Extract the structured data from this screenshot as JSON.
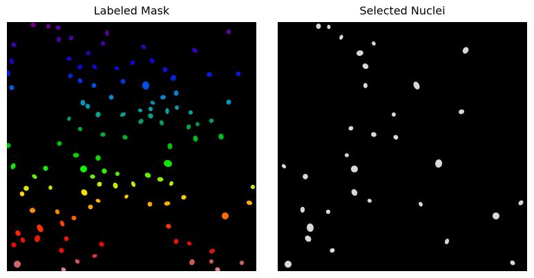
{
  "figure": {
    "panels": [
      {
        "title": "Labeled Mask",
        "colormap": "nipy_spectral",
        "background": "#000000"
      },
      {
        "title": "Selected Nuclei",
        "colormap": "gray",
        "background": "#000000",
        "nucleus_color": "#d8d8d8"
      }
    ]
  }
}
